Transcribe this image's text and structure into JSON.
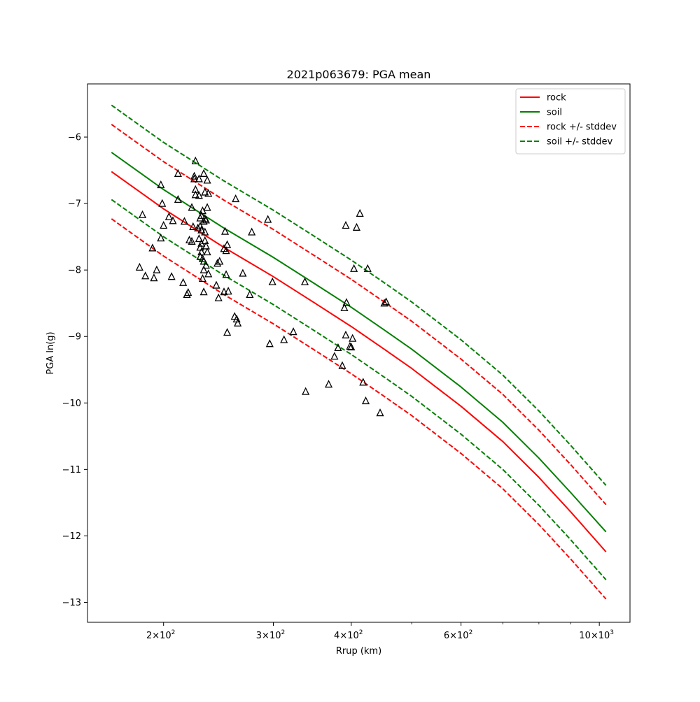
{
  "chart_data": {
    "type": "scatter",
    "title": "2021p063679: PGA mean",
    "xlabel": "Rrup (km)",
    "ylabel": "PGA ln(g)",
    "xscale": "log",
    "xlim": [
      151,
      1120
    ],
    "ylim": [
      -13.3,
      -5.2
    ],
    "grid": false,
    "legend_position": "top-right",
    "x_ticks": [
      {
        "value": 200,
        "base": "2",
        "exp": "2"
      },
      {
        "value": 300,
        "base": "3",
        "exp": "2"
      },
      {
        "value": 400,
        "base": "4",
        "exp": "2"
      },
      {
        "value": 600,
        "base": "6",
        "exp": "2"
      },
      {
        "value": 1000,
        "base": "10",
        "exp": "3"
      }
    ],
    "x_minor_ticks": [
      500,
      700,
      800,
      900
    ],
    "y_ticks": [
      -6,
      -7,
      -8,
      -9,
      -10,
      -11,
      -12,
      -13
    ],
    "y_tick_labels": [
      "−6",
      "−7",
      "−8",
      "−9",
      "−10",
      "−11",
      "−12",
      "−13"
    ],
    "series": [
      {
        "name": "rock",
        "color": "#ff0000",
        "dash": "solid",
        "x": [
          165,
          200,
          250,
          300,
          350,
          400,
          450,
          500,
          600,
          700,
          800,
          900,
          1025
        ],
        "y": [
          -6.52,
          -7.08,
          -7.66,
          -8.1,
          -8.5,
          -8.85,
          -9.18,
          -9.48,
          -10.05,
          -10.58,
          -11.12,
          -11.64,
          -12.24
        ]
      },
      {
        "name": "soil",
        "color": "#008000",
        "dash": "solid",
        "x": [
          165,
          200,
          250,
          300,
          350,
          400,
          450,
          500,
          600,
          700,
          800,
          900,
          1025
        ],
        "y": [
          -6.23,
          -6.79,
          -7.37,
          -7.81,
          -8.21,
          -8.56,
          -8.89,
          -9.19,
          -9.76,
          -10.29,
          -10.83,
          -11.35,
          -11.94
        ]
      },
      {
        "name": "rock +/- stddev",
        "color": "#ff0000",
        "dash": "dashed",
        "x": [
          165,
          200,
          250,
          300,
          350,
          400,
          450,
          500,
          600,
          700,
          800,
          900,
          1025
        ],
        "y": [
          -5.81,
          -6.37,
          -6.95,
          -7.39,
          -7.79,
          -8.14,
          -8.47,
          -8.77,
          -9.34,
          -9.87,
          -10.41,
          -10.93,
          -11.53
        ]
      },
      {
        "name": "",
        "color": "#ff0000",
        "dash": "dashed",
        "x": [
          165,
          200,
          250,
          300,
          350,
          400,
          450,
          500,
          600,
          700,
          800,
          900,
          1025
        ],
        "y": [
          -7.23,
          -7.79,
          -8.37,
          -8.81,
          -9.21,
          -9.56,
          -9.89,
          -10.19,
          -10.76,
          -11.29,
          -11.83,
          -12.35,
          -12.95
        ]
      },
      {
        "name": "soil +/- stddev",
        "color": "#008000",
        "dash": "dashed",
        "x": [
          165,
          200,
          250,
          300,
          350,
          400,
          450,
          500,
          600,
          700,
          800,
          900,
          1025
        ],
        "y": [
          -5.52,
          -6.08,
          -6.66,
          -7.1,
          -7.5,
          -7.85,
          -8.18,
          -8.48,
          -9.05,
          -9.58,
          -10.12,
          -10.64,
          -11.24
        ]
      },
      {
        "name": "",
        "color": "#008000",
        "dash": "dashed",
        "x": [
          165,
          200,
          250,
          300,
          350,
          400,
          450,
          500,
          600,
          700,
          800,
          900,
          1025
        ],
        "y": [
          -6.94,
          -7.5,
          -8.08,
          -8.52,
          -8.92,
          -9.27,
          -9.6,
          -9.9,
          -10.47,
          -11.0,
          -11.54,
          -12.06,
          -12.66
        ]
      }
    ],
    "observations": {
      "marker": "triangle-open",
      "color": "#000000",
      "points": [
        [
          183,
          -7.96
        ],
        [
          185,
          -7.17
        ],
        [
          187,
          -8.09
        ],
        [
          192,
          -7.67
        ],
        [
          193,
          -8.12
        ],
        [
          195,
          -8.0
        ],
        [
          198,
          -7.52
        ],
        [
          198,
          -6.72
        ],
        [
          199,
          -7.0
        ],
        [
          200,
          -7.33
        ],
        [
          204,
          -7.2
        ],
        [
          206,
          -8.1
        ],
        [
          207,
          -7.26
        ],
        [
          211,
          -6.94
        ],
        [
          211,
          -6.55
        ],
        [
          215,
          -8.19
        ],
        [
          216,
          -7.27
        ],
        [
          218,
          -8.37
        ],
        [
          219,
          -8.34
        ],
        [
          220,
          -7.55
        ],
        [
          222,
          -7.06
        ],
        [
          222,
          -7.57
        ],
        [
          223,
          -7.35
        ],
        [
          224,
          -6.59
        ],
        [
          224,
          -6.63
        ],
        [
          225,
          -6.36
        ],
        [
          225,
          -6.79
        ],
        [
          225,
          -6.87
        ],
        [
          227,
          -7.37
        ],
        [
          228,
          -7.53
        ],
        [
          228,
          -6.63
        ],
        [
          228,
          -6.88
        ],
        [
          229,
          -7.22
        ],
        [
          229,
          -7.34
        ],
        [
          229,
          -7.66
        ],
        [
          229,
          -7.8
        ],
        [
          230,
          -7.18
        ],
        [
          230,
          -7.4
        ],
        [
          230,
          -7.6
        ],
        [
          230,
          -7.73
        ],
        [
          231,
          -7.11
        ],
        [
          231,
          -7.83
        ],
        [
          231,
          -8.13
        ],
        [
          232,
          -6.55
        ],
        [
          232,
          -7.27
        ],
        [
          232,
          -7.87
        ],
        [
          232,
          -8.33
        ],
        [
          232,
          -8.0
        ],
        [
          233,
          -6.83
        ],
        [
          233,
          -7.23
        ],
        [
          233,
          -7.43
        ],
        [
          233,
          -7.56
        ],
        [
          234,
          -7.25
        ],
        [
          234,
          -7.64
        ],
        [
          234,
          -7.93
        ],
        [
          235,
          -7.06
        ],
        [
          235,
          -6.65
        ],
        [
          235,
          -7.73
        ],
        [
          236,
          -6.85
        ],
        [
          236,
          -8.06
        ],
        [
          243,
          -8.23
        ],
        [
          244,
          -7.9
        ],
        [
          245,
          -8.42
        ],
        [
          246,
          -7.87
        ],
        [
          250,
          -7.68
        ],
        [
          250,
          -8.33
        ],
        [
          251,
          -7.42
        ],
        [
          252,
          -8.07
        ],
        [
          252,
          -7.71
        ],
        [
          253,
          -7.62
        ],
        [
          253,
          -8.94
        ],
        [
          254,
          -8.32
        ],
        [
          260,
          -8.7
        ],
        [
          261,
          -6.93
        ],
        [
          262,
          -8.74
        ],
        [
          263,
          -8.8
        ],
        [
          268,
          -8.05
        ],
        [
          275,
          -8.37
        ],
        [
          277,
          -7.43
        ],
        [
          294,
          -7.24
        ],
        [
          296,
          -9.11
        ],
        [
          299,
          -8.18
        ],
        [
          312,
          -9.05
        ],
        [
          323,
          -8.93
        ],
        [
          337,
          -8.18
        ],
        [
          338,
          -9.83
        ],
        [
          368,
          -9.72
        ],
        [
          376,
          -9.3
        ],
        [
          381,
          -9.17
        ],
        [
          387,
          -9.44
        ],
        [
          390,
          -8.57
        ],
        [
          393,
          -8.49
        ],
        [
          392,
          -8.98
        ],
        [
          392,
          -7.33
        ],
        [
          398,
          -9.15
        ],
        [
          400,
          -9.16
        ],
        [
          402,
          -9.03
        ],
        [
          404,
          -7.98
        ],
        [
          408,
          -7.36
        ],
        [
          413,
          -7.15
        ],
        [
          418,
          -9.69
        ],
        [
          422,
          -9.97
        ],
        [
          425,
          -7.98
        ],
        [
          445,
          -10.15
        ],
        [
          452,
          -8.5
        ],
        [
          455,
          -8.48
        ]
      ]
    }
  }
}
